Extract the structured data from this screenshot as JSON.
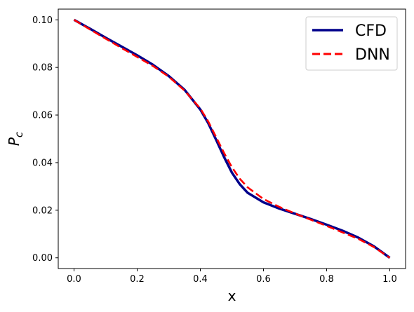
{
  "chart_data": {
    "type": "line",
    "title": "",
    "xlabel": "x",
    "ylabel_main": "P",
    "ylabel_sub": "c",
    "xlim": [
      -0.05,
      1.05
    ],
    "ylim": [
      -0.0045,
      0.1045
    ],
    "xticks": [
      0.0,
      0.2,
      0.4,
      0.6,
      0.8,
      1.0
    ],
    "xtick_labels": [
      "0.0",
      "0.2",
      "0.4",
      "0.6",
      "0.8",
      "1.0"
    ],
    "yticks": [
      0.0,
      0.02,
      0.04,
      0.06,
      0.08,
      0.1
    ],
    "ytick_labels": [
      "0.00",
      "0.02",
      "0.04",
      "0.06",
      "0.08",
      "0.10"
    ],
    "grid": false,
    "legend_position": "top-right",
    "series": [
      {
        "name": "CFD",
        "color": "#00008b",
        "style": "solid",
        "x": [
          0.0,
          0.05,
          0.1,
          0.15,
          0.2,
          0.25,
          0.3,
          0.35,
          0.4,
          0.425,
          0.45,
          0.475,
          0.5,
          0.525,
          0.55,
          0.6,
          0.65,
          0.7,
          0.75,
          0.8,
          0.85,
          0.9,
          0.95,
          1.0
        ],
        "y": [
          0.1,
          0.0963,
          0.0925,
          0.0888,
          0.0851,
          0.0811,
          0.0764,
          0.0706,
          0.0623,
          0.0566,
          0.0496,
          0.0424,
          0.0358,
          0.0309,
          0.0273,
          0.0233,
          0.0207,
          0.0185,
          0.0163,
          0.0139,
          0.0114,
          0.0085,
          0.0048,
          0.0
        ]
      },
      {
        "name": "DNN",
        "color": "#ff0000",
        "style": "dashed",
        "x": [
          0.0,
          0.05,
          0.1,
          0.15,
          0.2,
          0.25,
          0.3,
          0.35,
          0.4,
          0.425,
          0.45,
          0.475,
          0.5,
          0.525,
          0.55,
          0.6,
          0.65,
          0.7,
          0.75,
          0.8,
          0.85,
          0.9,
          0.95,
          1.0
        ],
        "y": [
          0.1,
          0.096,
          0.0921,
          0.0882,
          0.0844,
          0.0806,
          0.0761,
          0.0703,
          0.0627,
          0.0573,
          0.0507,
          0.0441,
          0.0381,
          0.0332,
          0.0296,
          0.0247,
          0.0214,
          0.0186,
          0.016,
          0.0134,
          0.0107,
          0.008,
          0.0045,
          0.0
        ]
      }
    ]
  }
}
